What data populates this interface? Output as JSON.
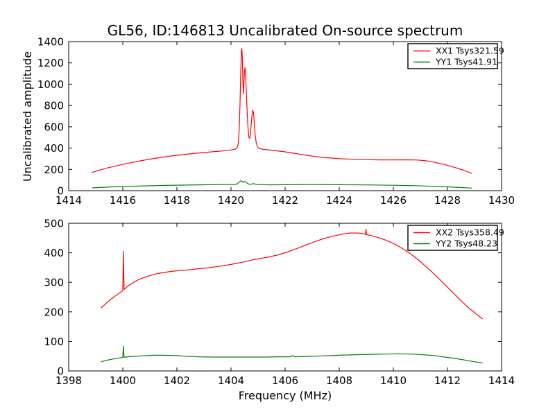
{
  "figure": {
    "title": "GL56, ID:146813 Uncalibrated On-source spectrum",
    "ylabel": "Uncalibrated amplitude",
    "xlabel": "Frequency (MHz)",
    "background": "#ffffff",
    "axis_color": "#000000"
  },
  "chart_data": [
    {
      "type": "line",
      "position": "top",
      "title": "GL56, ID:146813 Uncalibrated On-source spectrum",
      "xlabel": "",
      "ylabel": "Uncalibrated amplitude",
      "xlim": [
        1414,
        1430
      ],
      "ylim": [
        0,
        1400
      ],
      "xticks": [
        1414,
        1416,
        1418,
        1420,
        1422,
        1424,
        1426,
        1428,
        1430
      ],
      "yticks": [
        0,
        200,
        400,
        600,
        800,
        1000,
        1200,
        1400
      ],
      "grid": false,
      "legend_position": "upper right",
      "series": [
        {
          "name": "XX1 Tsys321.59",
          "color": "#ff0000",
          "points": [
            [
              1414.85,
              170
            ],
            [
              1415.1,
              190
            ],
            [
              1415.4,
              212
            ],
            [
              1415.8,
              236
            ],
            [
              1416.2,
              258
            ],
            [
              1416.6,
              278
            ],
            [
              1417.0,
              296
            ],
            [
              1417.4,
              312
            ],
            [
              1417.8,
              326
            ],
            [
              1418.2,
              338
            ],
            [
              1418.6,
              349
            ],
            [
              1419.0,
              358
            ],
            [
              1419.4,
              367
            ],
            [
              1419.8,
              376
            ],
            [
              1420.0,
              382
            ],
            [
              1420.15,
              390
            ],
            [
              1420.22,
              402
            ],
            [
              1420.27,
              440
            ],
            [
              1420.3,
              560
            ],
            [
              1420.33,
              800
            ],
            [
              1420.36,
              1100
            ],
            [
              1420.38,
              1300
            ],
            [
              1420.4,
              1335
            ],
            [
              1420.42,
              1240
            ],
            [
              1420.44,
              1000
            ],
            [
              1420.46,
              910
            ],
            [
              1420.48,
              1020
            ],
            [
              1420.5,
              1130
            ],
            [
              1420.52,
              1155
            ],
            [
              1420.54,
              1080
            ],
            [
              1420.57,
              900
            ],
            [
              1420.6,
              720
            ],
            [
              1420.63,
              580
            ],
            [
              1420.66,
              505
            ],
            [
              1420.69,
              490
            ],
            [
              1420.72,
              540
            ],
            [
              1420.75,
              640
            ],
            [
              1420.78,
              720
            ],
            [
              1420.8,
              755
            ],
            [
              1420.83,
              735
            ],
            [
              1420.86,
              640
            ],
            [
              1420.89,
              530
            ],
            [
              1420.93,
              450
            ],
            [
              1420.98,
              410
            ],
            [
              1421.05,
              395
            ],
            [
              1421.2,
              388
            ],
            [
              1421.5,
              380
            ],
            [
              1421.9,
              368
            ],
            [
              1422.3,
              352
            ],
            [
              1422.7,
              336
            ],
            [
              1423.1,
              321
            ],
            [
              1423.5,
              310
            ],
            [
              1424.0,
              301
            ],
            [
              1424.5,
              295
            ],
            [
              1425.0,
              291
            ],
            [
              1425.5,
              289
            ],
            [
              1426.0,
              289
            ],
            [
              1426.5,
              290
            ],
            [
              1426.9,
              288
            ],
            [
              1427.2,
              281
            ],
            [
              1427.5,
              268
            ],
            [
              1427.9,
              245
            ],
            [
              1428.3,
              216
            ],
            [
              1428.6,
              192
            ],
            [
              1428.9,
              162
            ]
          ]
        },
        {
          "name": "YY1 Tsys41.91",
          "color": "#008000",
          "points": [
            [
              1414.87,
              26
            ],
            [
              1415.4,
              33
            ],
            [
              1416.0,
              39
            ],
            [
              1416.8,
              45
            ],
            [
              1417.6,
              50
            ],
            [
              1418.4,
              53
            ],
            [
              1419.2,
              56
            ],
            [
              1419.8,
              57
            ],
            [
              1420.1,
              58
            ],
            [
              1420.22,
              62
            ],
            [
              1420.3,
              80
            ],
            [
              1420.36,
              92
            ],
            [
              1420.4,
              90
            ],
            [
              1420.45,
              78
            ],
            [
              1420.5,
              86
            ],
            [
              1420.55,
              80
            ],
            [
              1420.62,
              66
            ],
            [
              1420.7,
              58
            ],
            [
              1420.78,
              64
            ],
            [
              1420.85,
              66
            ],
            [
              1420.92,
              60
            ],
            [
              1421.0,
              57
            ],
            [
              1421.4,
              55
            ],
            [
              1422.0,
              56
            ],
            [
              1423.0,
              57
            ],
            [
              1424.0,
              56
            ],
            [
              1425.0,
              54
            ],
            [
              1426.0,
              51
            ],
            [
              1426.8,
              47
            ],
            [
              1427.5,
              41
            ],
            [
              1428.2,
              33
            ],
            [
              1428.9,
              24
            ]
          ]
        }
      ]
    },
    {
      "type": "line",
      "position": "bottom",
      "title": "",
      "xlabel": "Frequency (MHz)",
      "ylabel": "",
      "xlim": [
        1398,
        1414
      ],
      "ylim": [
        0,
        500
      ],
      "xticks": [
        1398,
        1400,
        1402,
        1404,
        1406,
        1408,
        1410,
        1412,
        1414
      ],
      "yticks": [
        0,
        100,
        200,
        300,
        400,
        500
      ],
      "grid": false,
      "legend_position": "upper right",
      "series": [
        {
          "name": "XX2 Tsys358.49",
          "color": "#ff0000",
          "points": [
            [
              1399.2,
              213
            ],
            [
              1399.35,
              226
            ],
            [
              1399.5,
              238
            ],
            [
              1399.65,
              249
            ],
            [
              1399.8,
              259
            ],
            [
              1399.95,
              269
            ],
            [
              1400.0,
              272
            ],
            [
              1400.02,
              405
            ],
            [
              1400.05,
              276
            ],
            [
              1400.2,
              288
            ],
            [
              1400.4,
              300
            ],
            [
              1400.6,
              310
            ],
            [
              1400.9,
              320
            ],
            [
              1401.2,
              328
            ],
            [
              1401.5,
              333
            ],
            [
              1401.8,
              337
            ],
            [
              1402.1,
              340
            ],
            [
              1402.4,
              342
            ],
            [
              1402.7,
              345
            ],
            [
              1403.0,
              348
            ],
            [
              1403.3,
              351
            ],
            [
              1403.6,
              355
            ],
            [
              1403.9,
              359
            ],
            [
              1404.2,
              364
            ],
            [
              1404.5,
              370
            ],
            [
              1404.8,
              376
            ],
            [
              1405.1,
              381
            ],
            [
              1405.4,
              386
            ],
            [
              1405.7,
              392
            ],
            [
              1406.0,
              400
            ],
            [
              1406.3,
              410
            ],
            [
              1406.6,
              420
            ],
            [
              1406.9,
              431
            ],
            [
              1407.2,
              441
            ],
            [
              1407.5,
              450
            ],
            [
              1407.8,
              457
            ],
            [
              1408.1,
              463
            ],
            [
              1408.4,
              467
            ],
            [
              1408.7,
              467
            ],
            [
              1408.9,
              464
            ],
            [
              1408.97,
              462
            ],
            [
              1408.99,
              480
            ],
            [
              1409.01,
              461
            ],
            [
              1409.2,
              458
            ],
            [
              1409.5,
              450
            ],
            [
              1409.8,
              440
            ],
            [
              1410.1,
              427
            ],
            [
              1410.4,
              411
            ],
            [
              1410.7,
              392
            ],
            [
              1411.0,
              370
            ],
            [
              1411.3,
              346
            ],
            [
              1411.6,
              320
            ],
            [
              1411.9,
              293
            ],
            [
              1412.2,
              265
            ],
            [
              1412.5,
              238
            ],
            [
              1412.8,
              212
            ],
            [
              1413.1,
              190
            ],
            [
              1413.3,
              176
            ]
          ]
        },
        {
          "name": "YY2 Tsys48.23",
          "color": "#008000",
          "points": [
            [
              1399.2,
              31
            ],
            [
              1399.5,
              38
            ],
            [
              1399.8,
              43
            ],
            [
              1399.95,
              45
            ],
            [
              1400.0,
              46
            ],
            [
              1400.02,
              84
            ],
            [
              1400.05,
              46
            ],
            [
              1400.3,
              49
            ],
            [
              1400.7,
              51
            ],
            [
              1401.1,
              53
            ],
            [
              1401.5,
              53
            ],
            [
              1401.9,
              52
            ],
            [
              1402.3,
              50
            ],
            [
              1402.8,
              48
            ],
            [
              1403.4,
              47
            ],
            [
              1404.0,
              47
            ],
            [
              1404.6,
              47
            ],
            [
              1405.2,
              47
            ],
            [
              1405.8,
              48
            ],
            [
              1406.2,
              48
            ],
            [
              1406.28,
              52
            ],
            [
              1406.35,
              48
            ],
            [
              1406.8,
              49
            ],
            [
              1407.4,
              51
            ],
            [
              1408.0,
              53
            ],
            [
              1408.6,
              55
            ],
            [
              1409.2,
              56
            ],
            [
              1409.7,
              57
            ],
            [
              1410.2,
              58
            ],
            [
              1410.7,
              57
            ],
            [
              1411.1,
              55
            ],
            [
              1411.5,
              52
            ],
            [
              1411.9,
              47
            ],
            [
              1412.3,
              42
            ],
            [
              1412.7,
              36
            ],
            [
              1413.0,
              31
            ],
            [
              1413.3,
              27
            ]
          ]
        }
      ]
    }
  ]
}
